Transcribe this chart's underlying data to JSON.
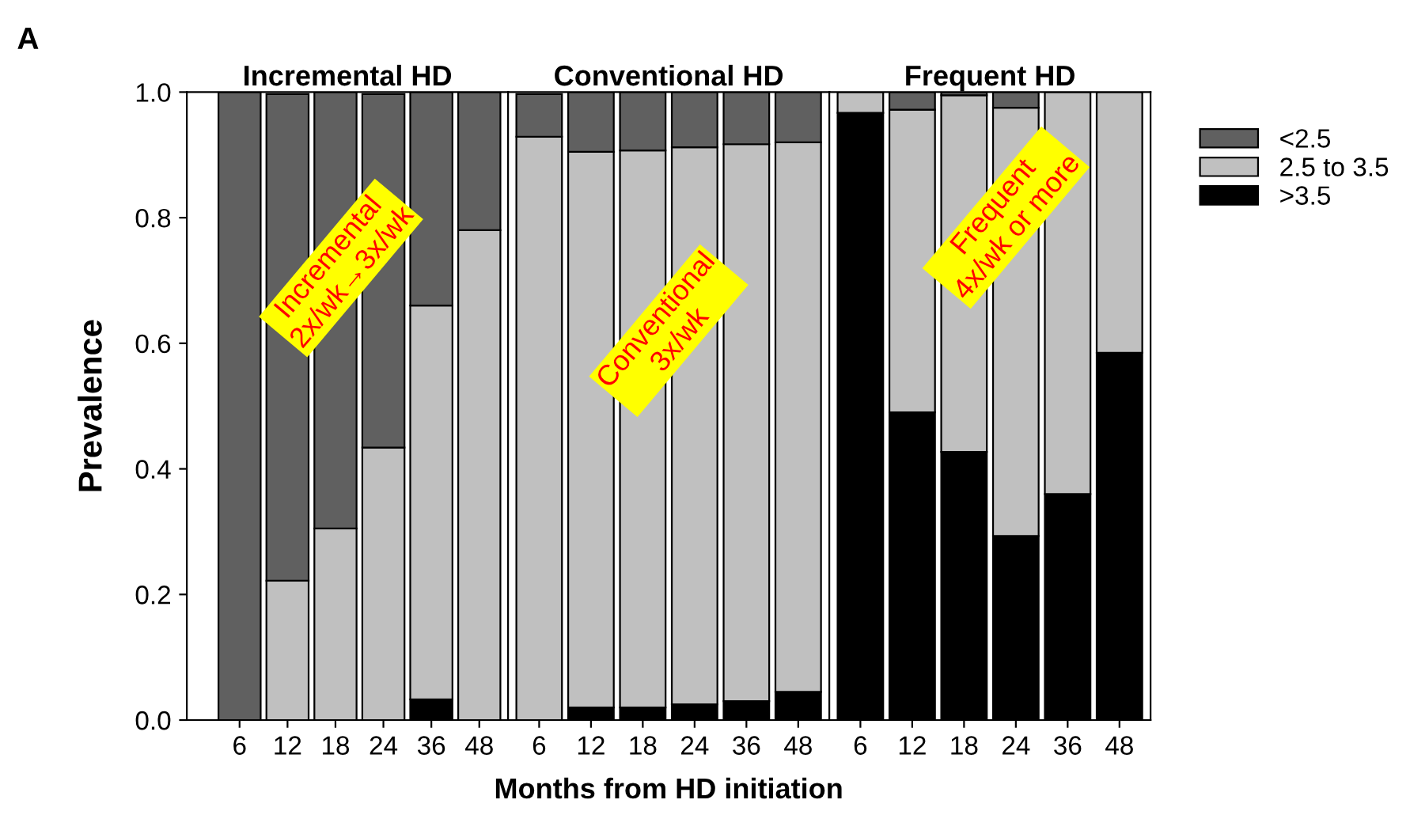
{
  "chart_data": [
    {
      "type": "bar",
      "stacked": true,
      "title": "Incremental HD",
      "ylabel": "Prevalence",
      "categories": [
        "6",
        "12",
        "18",
        "24",
        "36",
        "48"
      ],
      "series": [
        {
          "color": "#000000",
          "values": [
            0,
            null,
            0,
            null,
            0.033,
            0
          ]
        },
        {
          "color": "#c0c0c0",
          "values": [
            0,
            0.222,
            0.305,
            0.434,
            0.627,
            0.78
          ]
        },
        {
          "color": "#606060",
          "values": [
            1,
            0.775,
            0.695,
            0.563,
            0.34,
            0.22
          ]
        }
      ],
      "ylim": [
        0,
        1
      ],
      "yticks": [
        {
          "value": 0,
          "label": "0.0"
        },
        {
          "value": 0.2,
          "label": "0.2"
        },
        {
          "value": 0.4,
          "label": "0.4"
        },
        {
          "value": 0.6,
          "label": "0.6"
        },
        {
          "value": 0.8,
          "label": "0.8"
        },
        {
          "value": 1,
          "label": "1.0"
        }
      ],
      "annotations": [
        "A",
        "Incremental\n2x/wk→3x/wk"
      ],
      "grid": false
    },
    {
      "type": "bar",
      "stacked": true,
      "title": "Conventional HD",
      "xlabel": "Months from HD initiation",
      "categories": [
        "6",
        "12",
        "18",
        "24",
        "36",
        "48"
      ],
      "series": [
        {
          "color": "#000000",
          "values": [
            null,
            0.02,
            0.02,
            0.025,
            0.03,
            0.045
          ]
        },
        {
          "color": "#c0c0c0",
          "values": [
            0.929,
            0.885,
            0.887,
            0.887,
            0.887,
            0.875
          ]
        },
        {
          "color": "#606060",
          "values": [
            0.068,
            0.095,
            0.093,
            0.088,
            0.083,
            0.08
          ]
        }
      ],
      "ylim": [
        0,
        1
      ],
      "tick_labels": "x",
      "annotations": [
        "Conventional\n3x/wk"
      ],
      "grid": false
    },
    {
      "type": "bar",
      "stacked": true,
      "title": "Frequent HD",
      "categories": [
        "6",
        "12",
        "18",
        "24",
        "36",
        "48"
      ],
      "series": [
        {
          "name": ">3.5",
          "color": "#000000",
          "values": [
            0.967,
            0.49,
            0.427,
            0.293,
            0.36,
            0.585
          ]
        },
        {
          "name": "2.5 to 3.5",
          "color": "#c0c0c0",
          "values": [
            0.033,
            0.482,
            0.568,
            0.682,
            0.64,
            0.415
          ]
        },
        {
          "name": "<2.5",
          "color": "#606060",
          "values": [
            0,
            0.028,
            0.005,
            0.025,
            0,
            0
          ]
        }
      ],
      "ylim": [
        0,
        1
      ],
      "tick_labels": "x",
      "annotations": [
        "Frequent\n4x/wk or more"
      ],
      "grid": false,
      "legend": "right"
    }
  ]
}
